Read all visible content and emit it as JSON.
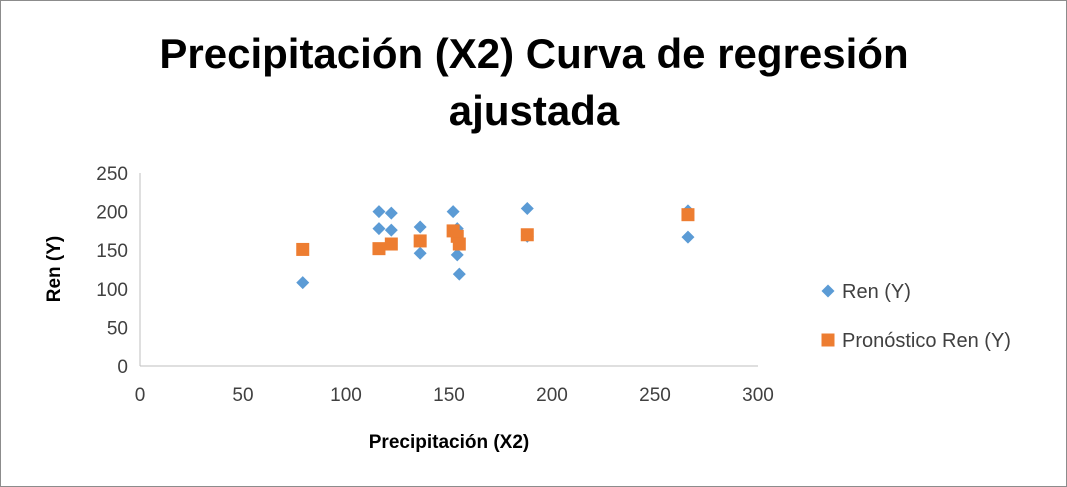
{
  "chart_data": {
    "type": "scatter",
    "title_lines": [
      "Precipitación (X2) Curva de regresión",
      "ajustada"
    ],
    "xlabel": "Precipitación (X2)",
    "ylabel": "Ren (Y)",
    "xlim": [
      0,
      300
    ],
    "ylim": [
      0,
      250
    ],
    "x_ticks": [
      0,
      50,
      100,
      150,
      200,
      250,
      300
    ],
    "y_ticks": [
      0,
      50,
      100,
      150,
      200,
      250
    ],
    "grid": false,
    "legend_position": "right",
    "series": [
      {
        "name": "Ren (Y)",
        "marker": "diamond",
        "color": "#5b9bd5",
        "points": [
          {
            "x": 79,
            "y": 108
          },
          {
            "x": 116,
            "y": 200
          },
          {
            "x": 116,
            "y": 178
          },
          {
            "x": 122,
            "y": 198
          },
          {
            "x": 122,
            "y": 176
          },
          {
            "x": 136,
            "y": 180
          },
          {
            "x": 136,
            "y": 146
          },
          {
            "x": 152,
            "y": 200
          },
          {
            "x": 154,
            "y": 178
          },
          {
            "x": 154,
            "y": 144
          },
          {
            "x": 155,
            "y": 119
          },
          {
            "x": 188,
            "y": 204
          },
          {
            "x": 188,
            "y": 168
          },
          {
            "x": 266,
            "y": 201
          },
          {
            "x": 266,
            "y": 167
          }
        ]
      },
      {
        "name": "Pronóstico Ren (Y)",
        "marker": "square",
        "color": "#ed7d31",
        "points": [
          {
            "x": 79,
            "y": 151
          },
          {
            "x": 116,
            "y": 152
          },
          {
            "x": 122,
            "y": 158
          },
          {
            "x": 136,
            "y": 162
          },
          {
            "x": 152,
            "y": 175
          },
          {
            "x": 154,
            "y": 168
          },
          {
            "x": 155,
            "y": 158
          },
          {
            "x": 188,
            "y": 170
          },
          {
            "x": 266,
            "y": 196
          }
        ]
      }
    ]
  }
}
